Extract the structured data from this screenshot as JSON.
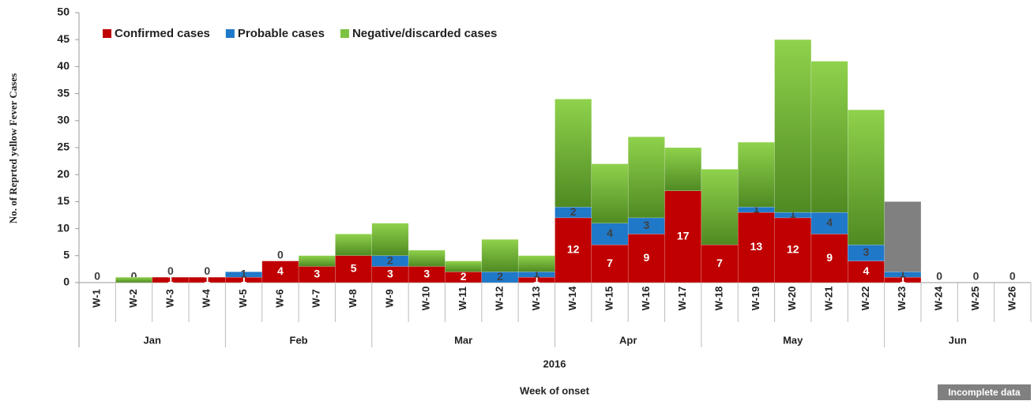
{
  "chart_data": {
    "type": "stacked_bar",
    "y_label": "No. of Reprted yellow Fever Cases",
    "x_label": "Week of onset",
    "year": "2016",
    "categories": [
      "W-1",
      "W-2",
      "W-3",
      "W-4",
      "W-5",
      "W-6",
      "W-7",
      "W-8",
      "W-9",
      "W-10",
      "W-11",
      "W-12",
      "W-13",
      "W-14",
      "W-15",
      "W-16",
      "W-17",
      "W-18",
      "W-19",
      "W-20",
      "W-21",
      "W-22",
      "W-23",
      "W-24",
      "W-25",
      "W-26"
    ],
    "groups": [
      {
        "label": "Jan",
        "span": 4
      },
      {
        "label": "Feb",
        "span": 4
      },
      {
        "label": "Mar",
        "span": 5
      },
      {
        "label": "Apr",
        "span": 4
      },
      {
        "label": "May",
        "span": 5
      },
      {
        "label": "Jun",
        "span": 4
      }
    ],
    "series": [
      {
        "name": "Confirmed cases",
        "color": "#c00000",
        "labels": true,
        "values": [
          0,
          0,
          1,
          1,
          1,
          4,
          3,
          5,
          3,
          3,
          2,
          0,
          1,
          12,
          7,
          9,
          17,
          7,
          13,
          12,
          9,
          4,
          1,
          0,
          0,
          0
        ]
      },
      {
        "name": "Probable cases",
        "color": "#1f78c8",
        "labels": true,
        "values": [
          0,
          0,
          0,
          0,
          1,
          0,
          0,
          0,
          2,
          0,
          0,
          2,
          1,
          2,
          4,
          3,
          0,
          0,
          1,
          1,
          4,
          3,
          1,
          0,
          0,
          0
        ]
      },
      {
        "name": "Negative/discarded cases",
        "color": "#7cc242",
        "labels": false,
        "values": [
          0,
          1,
          0,
          0,
          0,
          0,
          2,
          4,
          6,
          3,
          2,
          6,
          3,
          20,
          11,
          15,
          8,
          14,
          12,
          32,
          28,
          25,
          0,
          0,
          0,
          0
        ]
      },
      {
        "name": "Incomplete data",
        "color": "#808080",
        "labels": false,
        "legend": "box",
        "values": [
          0,
          0,
          0,
          0,
          0,
          0,
          0,
          0,
          0,
          0,
          0,
          0,
          0,
          0,
          0,
          0,
          0,
          0,
          0,
          0,
          0,
          0,
          13,
          0,
          0,
          0
        ]
      }
    ],
    "ylim": [
      0,
      50
    ],
    "yticks": [
      0,
      5,
      10,
      15,
      20,
      25,
      30,
      35,
      40,
      45,
      50
    ]
  }
}
